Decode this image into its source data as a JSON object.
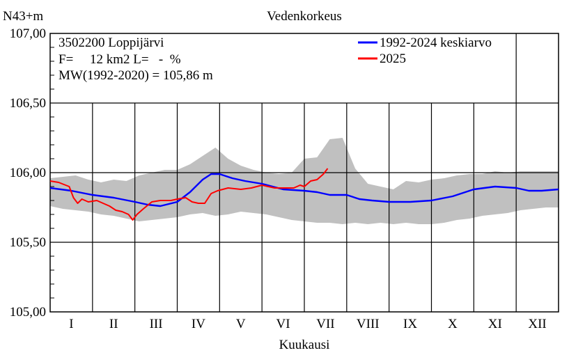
{
  "chart_data": {
    "type": "line",
    "title": "Vedenkorkeus",
    "ylabel": "N43+m",
    "xlabel": "Kuukausi",
    "ylim": [
      105.0,
      107.0
    ],
    "yticks": [
      "105,00",
      "105,50",
      "106,00",
      "106,50",
      "107,00"
    ],
    "ytick_values": [
      105.0,
      105.5,
      106.0,
      106.5,
      107.0
    ],
    "months": [
      "I",
      "II",
      "III",
      "IV",
      "V",
      "VI",
      "VII",
      "VIII",
      "IX",
      "X",
      "XI",
      "XII"
    ],
    "info": {
      "station": "3502200 Loppijärvi",
      "area": "F=     12 km2 L=   -  %",
      "mw": "MW(1992-2020) = 105,86 m"
    },
    "legend": {
      "position": "top-right",
      "entries": [
        {
          "label": "1992-2024 keskiarvo",
          "color": "#0000ff"
        },
        {
          "label": "2025",
          "color": "#ff0000"
        }
      ]
    },
    "colors": {
      "band": "#c0c0c0",
      "mean": "#0000ff",
      "current": "#ff0000",
      "grid": "#000000"
    },
    "band": {
      "name": "",
      "x": [
        0,
        0.3,
        0.6,
        0.9,
        1.2,
        1.5,
        1.8,
        2.1,
        2.4,
        2.7,
        3.0,
        3.3,
        3.6,
        3.9,
        4.2,
        4.5,
        4.8,
        5.1,
        5.4,
        5.7,
        6.0,
        6.3,
        6.6,
        6.9,
        7.2,
        7.5,
        7.8,
        8.1,
        8.4,
        8.7,
        9.0,
        9.3,
        9.6,
        9.9,
        10.2,
        10.5,
        10.8,
        11.1,
        11.4,
        11.7,
        12.0
      ],
      "upper": [
        105.96,
        105.97,
        105.98,
        105.95,
        105.93,
        105.95,
        105.94,
        105.98,
        106.0,
        106.02,
        106.02,
        106.06,
        106.12,
        106.18,
        106.1,
        106.05,
        106.02,
        106.0,
        105.99,
        106.0,
        106.1,
        106.11,
        106.24,
        106.25,
        106.03,
        105.92,
        105.9,
        105.88,
        105.94,
        105.93,
        105.95,
        105.96,
        105.98,
        105.99,
        105.99,
        106.01,
        106.0,
        106.01,
        106.01,
        106.01,
        106.01
      ],
      "lower": [
        105.76,
        105.74,
        105.73,
        105.72,
        105.7,
        105.69,
        105.67,
        105.65,
        105.66,
        105.67,
        105.68,
        105.7,
        105.71,
        105.69,
        105.7,
        105.72,
        105.71,
        105.7,
        105.68,
        105.66,
        105.65,
        105.64,
        105.64,
        105.63,
        105.64,
        105.63,
        105.64,
        105.63,
        105.64,
        105.63,
        105.63,
        105.64,
        105.66,
        105.67,
        105.69,
        105.7,
        105.71,
        105.73,
        105.74,
        105.75,
        105.75
      ]
    },
    "series": [
      {
        "name": "1992-2024 keskiarvo",
        "x": [
          0,
          0.5,
          1.0,
          1.5,
          2.0,
          2.3,
          2.6,
          3.0,
          3.3,
          3.6,
          3.8,
          4.0,
          4.3,
          4.6,
          5.0,
          5.5,
          6.0,
          6.3,
          6.6,
          7.0,
          7.3,
          7.6,
          8.0,
          8.5,
          9.0,
          9.5,
          10.0,
          10.5,
          11.0,
          11.3,
          11.6,
          12.0
        ],
        "values": [
          105.89,
          105.87,
          105.84,
          105.82,
          105.79,
          105.77,
          105.76,
          105.79,
          105.86,
          105.95,
          105.99,
          105.99,
          105.96,
          105.94,
          105.92,
          105.88,
          105.87,
          105.86,
          105.84,
          105.84,
          105.81,
          105.8,
          105.79,
          105.79,
          105.8,
          105.83,
          105.88,
          105.9,
          105.89,
          105.87,
          105.87,
          105.88
        ]
      },
      {
        "name": "2025",
        "x": [
          0,
          0.2,
          0.45,
          0.55,
          0.65,
          0.75,
          0.9,
          1.1,
          1.25,
          1.4,
          1.55,
          1.7,
          1.85,
          1.95,
          2.05,
          2.2,
          2.4,
          2.6,
          2.85,
          3.0,
          3.2,
          3.35,
          3.5,
          3.65,
          3.8,
          3.95,
          4.2,
          4.5,
          4.75,
          5.0,
          5.3,
          5.6,
          5.75,
          5.9,
          6.0,
          6.15,
          6.3,
          6.45,
          6.55
        ],
        "values": [
          105.94,
          105.93,
          105.9,
          105.82,
          105.78,
          105.81,
          105.79,
          105.8,
          105.78,
          105.76,
          105.73,
          105.72,
          105.7,
          105.66,
          105.7,
          105.74,
          105.79,
          105.8,
          105.8,
          105.81,
          105.82,
          105.79,
          105.78,
          105.78,
          105.85,
          105.87,
          105.89,
          105.88,
          105.89,
          105.91,
          105.89,
          105.89,
          105.89,
          105.91,
          105.9,
          105.94,
          105.95,
          105.99,
          106.03
        ]
      }
    ]
  }
}
